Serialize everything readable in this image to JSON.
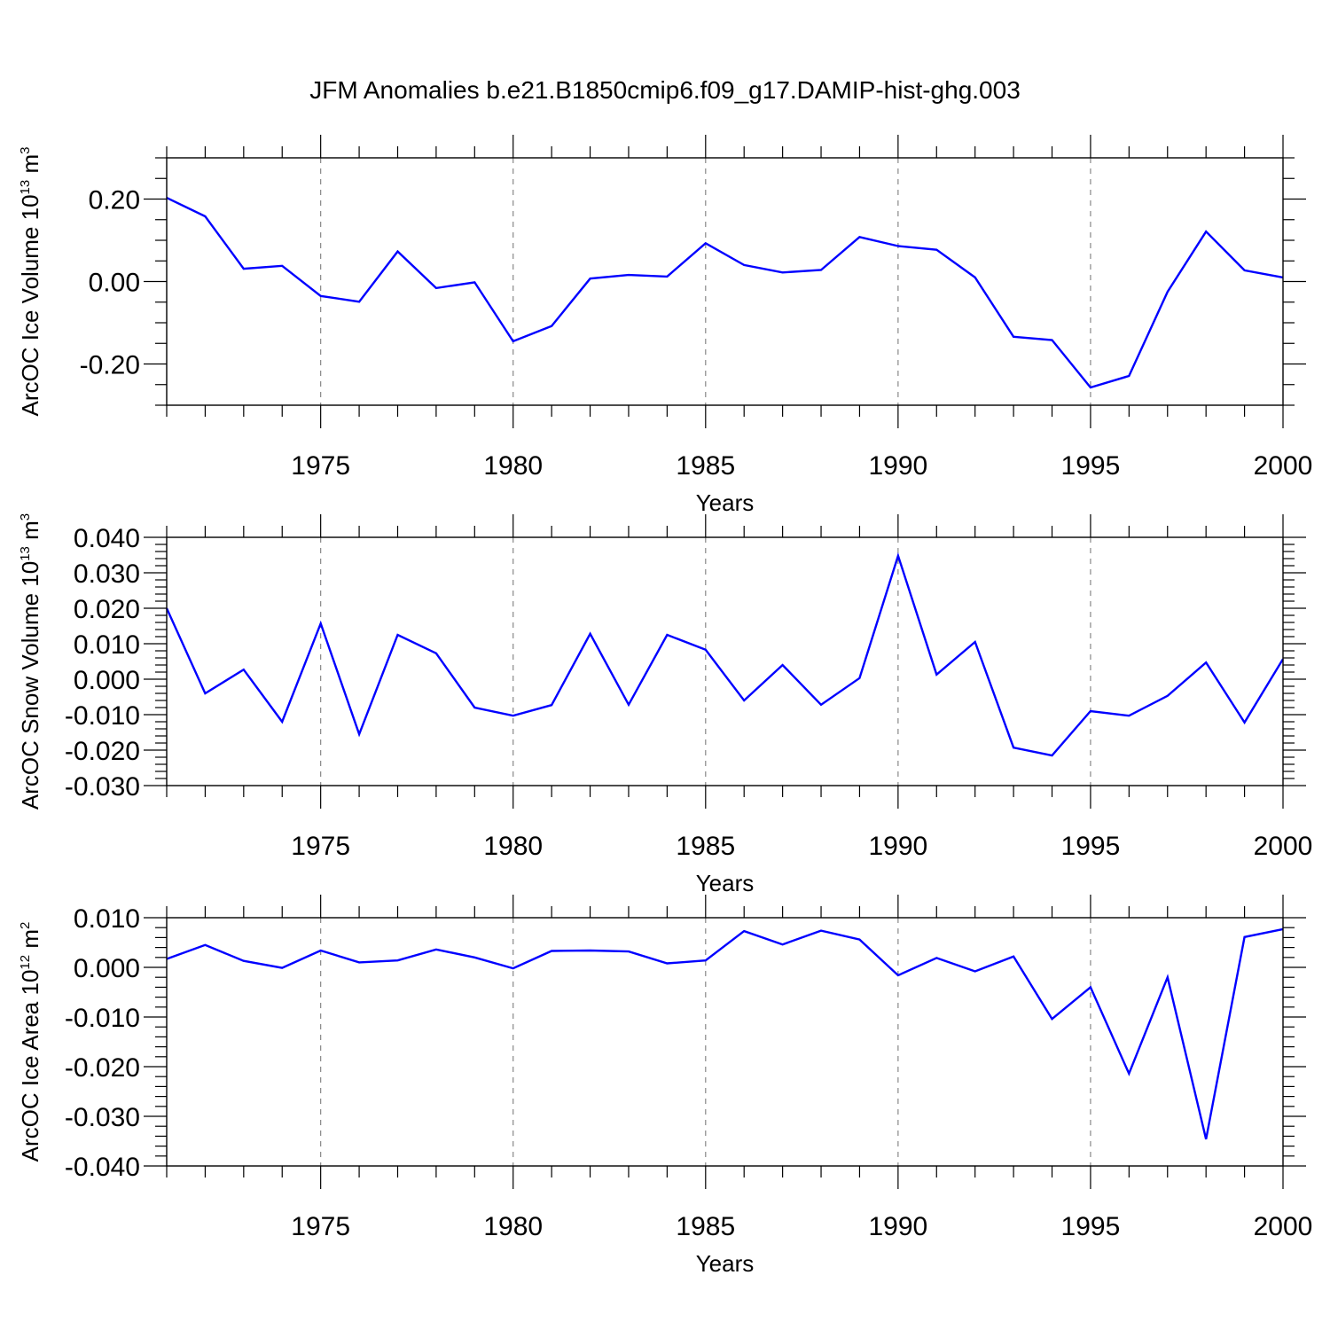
{
  "figure": {
    "title": "JFM Anomalies b.e21.B1850cmip6.f09_g17.DAMIP-hist-ghg.003",
    "line_color": "#0000ff",
    "grid_color": "#888888"
  },
  "chart_data": [
    {
      "type": "line",
      "xlabel": "Years",
      "ylabel": "ArcOC Ice Volume 10",
      "ylabel_exp": "13",
      "ylabel_unit": " m",
      "ylabel_unit_exp": "3",
      "xlim": [
        1971,
        2000
      ],
      "ylim": [
        -0.3,
        0.3
      ],
      "xticks": [
        1975,
        1980,
        1985,
        1990,
        1995,
        2000
      ],
      "xtick_labels": [
        "1975",
        "1980",
        "1985",
        "1990",
        "1995",
        "2000"
      ],
      "yticks": [
        -0.2,
        0.0,
        0.2
      ],
      "ytick_labels": [
        "-0.20",
        "0.00",
        "0.20"
      ],
      "y_minor_step": 0.05,
      "grid_x": [
        1975,
        1980,
        1985,
        1990,
        1995
      ],
      "series": [
        {
          "name": "ArcOC Ice Volume",
          "x": [
            1971,
            1972,
            1973,
            1974,
            1975,
            1976,
            1977,
            1978,
            1979,
            1980,
            1981,
            1982,
            1983,
            1984,
            1985,
            1986,
            1987,
            1988,
            1989,
            1990,
            1991,
            1992,
            1993,
            1994,
            1995,
            1996,
            1997,
            1998,
            1999,
            2000
          ],
          "values": [
            0.203,
            0.158,
            0.031,
            0.038,
            -0.035,
            -0.049,
            0.073,
            -0.016,
            -0.002,
            -0.145,
            -0.108,
            0.007,
            0.016,
            0.012,
            0.093,
            0.04,
            0.022,
            0.028,
            0.108,
            0.086,
            0.077,
            0.01,
            -0.134,
            -0.142,
            -0.257,
            -0.229,
            -0.025,
            0.121,
            0.027,
            0.01
          ]
        }
      ]
    },
    {
      "type": "line",
      "xlabel": "Years",
      "ylabel": "ArcOC Snow Volume 10",
      "ylabel_exp": "13",
      "ylabel_unit": " m",
      "ylabel_unit_exp": "3",
      "xlim": [
        1971,
        2000
      ],
      "ylim": [
        -0.03,
        0.04
      ],
      "xticks": [
        1975,
        1980,
        1985,
        1990,
        1995,
        2000
      ],
      "xtick_labels": [
        "1975",
        "1980",
        "1985",
        "1990",
        "1995",
        "2000"
      ],
      "yticks": [
        -0.03,
        -0.02,
        -0.01,
        0.0,
        0.01,
        0.02,
        0.03,
        0.04
      ],
      "ytick_labels": [
        "-0.030",
        "-0.020",
        "-0.010",
        "0.000",
        "0.010",
        "0.020",
        "0.030",
        "0.040"
      ],
      "y_minor_step": 0.002,
      "grid_x": [
        1975,
        1980,
        1985,
        1990,
        1995
      ],
      "series": [
        {
          "name": "ArcOC Snow Volume",
          "x": [
            1971,
            1972,
            1973,
            1974,
            1975,
            1976,
            1977,
            1978,
            1979,
            1980,
            1981,
            1982,
            1983,
            1984,
            1985,
            1986,
            1987,
            1988,
            1989,
            1990,
            1991,
            1992,
            1993,
            1994,
            1995,
            1996,
            1997,
            1998,
            1999,
            2000
          ],
          "values": [
            0.02,
            -0.004,
            0.0027,
            -0.012,
            0.0157,
            -0.0155,
            0.0125,
            0.0073,
            -0.008,
            -0.0103,
            -0.0073,
            0.0128,
            -0.0072,
            0.0125,
            0.0083,
            -0.006,
            0.004,
            -0.0072,
            0.0003,
            0.0348,
            0.0013,
            0.0105,
            -0.0193,
            -0.0215,
            -0.009,
            -0.0103,
            -0.0047,
            0.0047,
            -0.0122,
            0.0057
          ]
        }
      ]
    },
    {
      "type": "line",
      "xlabel": "Years",
      "ylabel": "ArcOC Ice Area 10",
      "ylabel_exp": "12",
      "ylabel_unit": " m",
      "ylabel_unit_exp": "2",
      "xlim": [
        1971,
        2000
      ],
      "ylim": [
        -0.04,
        0.01
      ],
      "xticks": [
        1975,
        1980,
        1985,
        1990,
        1995,
        2000
      ],
      "xtick_labels": [
        "1975",
        "1980",
        "1985",
        "1990",
        "1995",
        "2000"
      ],
      "yticks": [
        -0.04,
        -0.03,
        -0.02,
        -0.01,
        0.0,
        0.01
      ],
      "ytick_labels": [
        "-0.040",
        "-0.030",
        "-0.020",
        "-0.010",
        "0.000",
        "0.010"
      ],
      "y_minor_step": 0.002,
      "grid_x": [
        1975,
        1980,
        1985,
        1990,
        1995
      ],
      "series": [
        {
          "name": "ArcOC Ice Area",
          "x": [
            1971,
            1972,
            1973,
            1974,
            1975,
            1976,
            1977,
            1978,
            1979,
            1980,
            1981,
            1982,
            1983,
            1984,
            1985,
            1986,
            1987,
            1988,
            1989,
            1990,
            1991,
            1992,
            1993,
            1994,
            1995,
            1996,
            1997,
            1998,
            1999,
            2000
          ],
          "values": [
            0.0017,
            0.0045,
            0.0013,
            -0.0001,
            0.0034,
            0.001,
            0.0014,
            0.0036,
            0.002,
            -0.0002,
            0.0033,
            0.0034,
            0.0032,
            0.0008,
            0.0014,
            0.0073,
            0.0046,
            0.0074,
            0.0056,
            -0.0016,
            0.0019,
            -0.0008,
            0.0022,
            -0.0104,
            -0.004,
            -0.0214,
            -0.002,
            -0.0346,
            0.0061,
            0.0077
          ]
        }
      ]
    }
  ]
}
